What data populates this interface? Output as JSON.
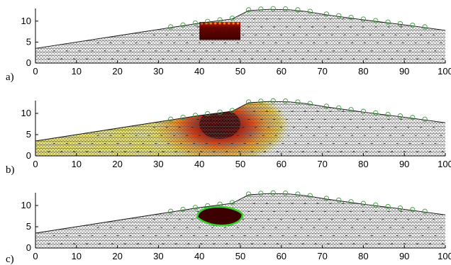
{
  "figure": {
    "panels": [
      {
        "label": "a)",
        "fill": "block"
      },
      {
        "label": "b)",
        "fill": "spread"
      },
      {
        "label": "c)",
        "fill": "zone"
      }
    ]
  },
  "chart_data": {
    "type": "area",
    "xlim": [
      0,
      100
    ],
    "ylim": [
      0,
      13
    ],
    "x_ticks": [
      "0",
      "10",
      "20",
      "30",
      "40",
      "50",
      "60",
      "70",
      "80",
      "90",
      "100"
    ],
    "y_ticks": [
      "0",
      "5",
      "10"
    ],
    "grid": false,
    "surface_profile": {
      "x": [
        0,
        10,
        20,
        30,
        40,
        48,
        52,
        57,
        62,
        66,
        71,
        80,
        90,
        100
      ],
      "y": [
        3.5,
        5.0,
        6.5,
        8.0,
        9.5,
        10.5,
        12.5,
        12.8,
        12.7,
        12.3,
        11.5,
        10.3,
        9.1,
        7.8
      ]
    },
    "surface_markers_x": [
      33,
      36,
      39,
      42,
      45,
      48,
      52,
      55,
      58,
      61,
      64,
      67,
      71,
      74,
      77,
      80,
      83,
      86,
      89,
      92,
      95
    ],
    "panel_a_block": {
      "x": [
        40,
        50
      ],
      "y": [
        5.5,
        9.8
      ]
    },
    "panel_b_core": {
      "x": [
        40,
        50
      ],
      "y": [
        4.0,
        11.0
      ]
    },
    "panel_c_zone": {
      "center": [
        45,
        7.5
      ],
      "radius": [
        5.5,
        2.4
      ]
    },
    "colors": {
      "mesh": "#555555",
      "marker": "#3a9a3a",
      "dark_core": "#3d0000",
      "red": "#c81a00",
      "yellow": "#f4ee77",
      "zone_outline": "#35d02a"
    }
  }
}
